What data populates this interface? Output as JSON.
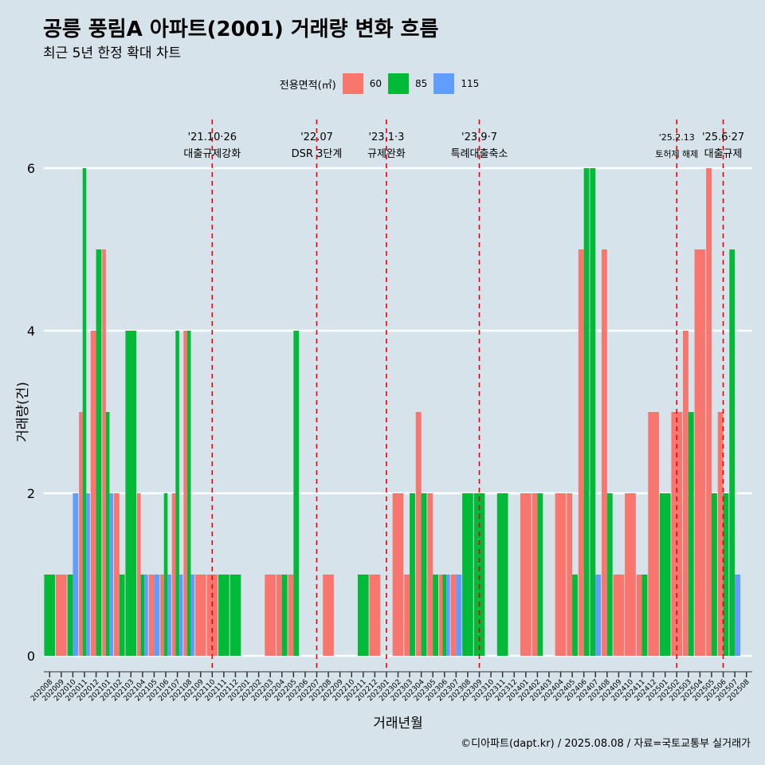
{
  "title": "공릉 풍림A 아파트(2001) 거래량 변화 흐름",
  "subtitle": "최근 5년 한정 확대 차트",
  "caption": "©디아파트(dapt.kr) / 2025.08.08 / 자료=국토교통부 실거래가",
  "legend": {
    "title": "전용면적(㎡)",
    "items": [
      {
        "label": "60",
        "color": "#f8766d"
      },
      {
        "label": "85",
        "color": "#00ba38"
      },
      {
        "label": "115",
        "color": "#619cff"
      }
    ]
  },
  "chart_data": {
    "type": "bar",
    "xlabel": "거래년월",
    "ylabel": "거래량(건)",
    "ylim": [
      0,
      6
    ],
    "yticks": [
      0,
      2,
      4,
      6
    ],
    "grid": true,
    "categories": [
      "202008",
      "202009",
      "202010",
      "202011",
      "202012",
      "202101",
      "202102",
      "202103",
      "202104",
      "202105",
      "202106",
      "202107",
      "202108",
      "202109",
      "202110",
      "202111",
      "202112",
      "202201",
      "202202",
      "202203",
      "202204",
      "202205",
      "202206",
      "202207",
      "202208",
      "202209",
      "202210",
      "202211",
      "202212",
      "202301",
      "202302",
      "202303",
      "202304",
      "202305",
      "202306",
      "202307",
      "202308",
      "202309",
      "202310",
      "202311",
      "202312",
      "202401",
      "202402",
      "202403",
      "202404",
      "202405",
      "202406",
      "202407",
      "202408",
      "202409",
      "202410",
      "202411",
      "202412",
      "202501",
      "202502",
      "202503",
      "202504",
      "202505",
      "202506",
      "202507",
      "202508"
    ],
    "series": [
      {
        "name": "60",
        "color": "#f8766d",
        "values": [
          0,
          1,
          0,
          3,
          4,
          5,
          2,
          0,
          2,
          1,
          1,
          2,
          4,
          1,
          1,
          0,
          0,
          0,
          0,
          1,
          1,
          1,
          0,
          0,
          1,
          0,
          0,
          0,
          1,
          0,
          2,
          1,
          3,
          2,
          1,
          1,
          0,
          0,
          0,
          0,
          0,
          2,
          2,
          0,
          2,
          2,
          5,
          0,
          5,
          1,
          2,
          1,
          3,
          0,
          3,
          4,
          5,
          6,
          3,
          0,
          0
        ]
      },
      {
        "name": "85",
        "color": "#00ba38",
        "values": [
          1,
          0,
          1,
          6,
          5,
          3,
          1,
          4,
          1,
          0,
          2,
          4,
          4,
          0,
          0,
          1,
          1,
          0,
          0,
          0,
          1,
          4,
          0,
          0,
          0,
          0,
          0,
          1,
          0,
          0,
          0,
          2,
          2,
          1,
          1,
          0,
          2,
          2,
          0,
          2,
          0,
          0,
          2,
          0,
          0,
          1,
          6,
          6,
          2,
          0,
          0,
          1,
          0,
          2,
          0,
          3,
          0,
          2,
          2,
          5,
          0
        ]
      },
      {
        "name": "115",
        "color": "#619cff",
        "values": [
          0,
          0,
          2,
          2,
          0,
          2,
          0,
          0,
          1,
          1,
          1,
          1,
          1,
          0,
          0,
          0,
          0,
          0,
          0,
          0,
          0,
          0,
          0,
          0,
          0,
          0,
          0,
          0,
          0,
          0,
          0,
          0,
          0,
          0,
          1,
          1,
          0,
          0,
          0,
          0,
          0,
          0,
          0,
          0,
          0,
          0,
          0,
          1,
          0,
          0,
          0,
          0,
          0,
          0,
          0,
          0,
          0,
          0,
          0,
          1,
          0
        ]
      }
    ],
    "annotations": [
      {
        "line1": "'21.10·26",
        "line2": "대출규제강화",
        "x": "202110"
      },
      {
        "line1": "'22.07",
        "line2": "DSR 3단계",
        "x": "202207"
      },
      {
        "line1": "'23.1·3",
        "line2": "규제완화",
        "x": "202301"
      },
      {
        "line1": "'23.9·7",
        "line2": "특례대출축소",
        "x": "202309"
      },
      {
        "line1": "'25.2.13",
        "line2": "토허제 해제",
        "x": "202502"
      },
      {
        "line1": "'25.6·27",
        "line2": "대출규제",
        "x": "202506"
      }
    ],
    "annotation_color": "#e8000b"
  }
}
